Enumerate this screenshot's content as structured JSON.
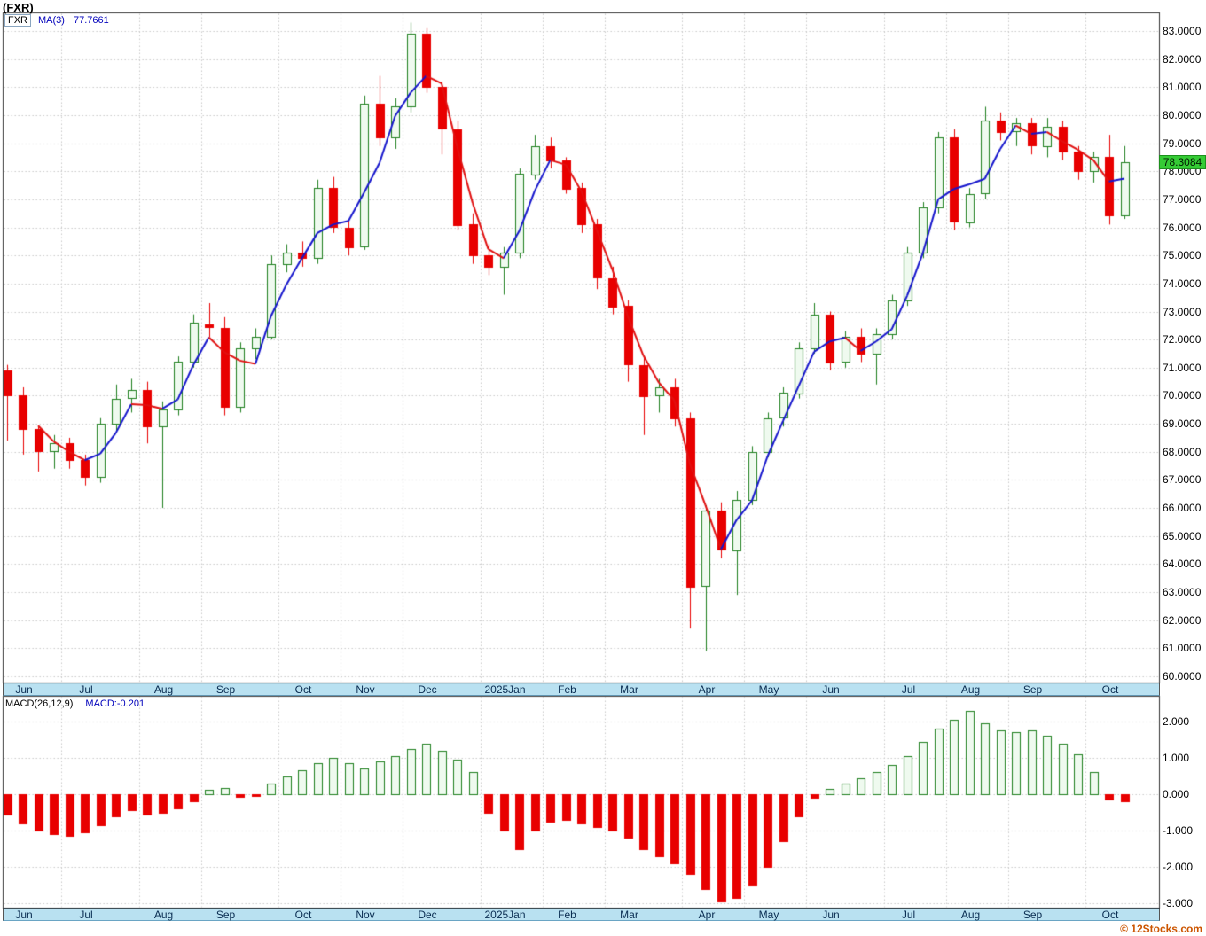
{
  "header": {
    "title": "(FXR)"
  },
  "legend": {
    "symbol": "FXR",
    "ma_label": "MA(3)",
    "ma_value": "77.7661"
  },
  "macd_panel": {
    "label": "MACD(26,12,9)",
    "value_label": "MACD:-0.201"
  },
  "price_tag": {
    "value": "78.3084"
  },
  "footer": {
    "copyright": "© 12Stocks.com"
  },
  "colors": {
    "up": "#1e7f1e",
    "up_fill": "#effaef",
    "down": "#e80000",
    "ma_up": "#1515cc",
    "ma_down": "#e01010",
    "grid": "#c9c9c9",
    "border": "#333333",
    "strip_bg": "#b9e1f1",
    "tag_bg": "#35cb35",
    "legend_blue": "#0000bb",
    "copyright": "#cc5500"
  },
  "chart_data": {
    "type": "candlestick",
    "title": "(FXR)",
    "symbol": "FXR",
    "last_price": 78.3084,
    "overlay": {
      "name": "MA(3)",
      "period": 3,
      "current": 77.7661
    },
    "price_axis": {
      "min": 60,
      "max": 83,
      "step": 1,
      "side": "right",
      "label_format": "4-decimals"
    },
    "grid": true,
    "months": [
      {
        "label": "Jun",
        "start": 0
      },
      {
        "label": "Jul",
        "start": 4
      },
      {
        "label": "Aug",
        "start": 9
      },
      {
        "label": "Sep",
        "start": 13
      },
      {
        "label": "Oct",
        "start": 18
      },
      {
        "label": "Nov",
        "start": 22
      },
      {
        "label": "Dec",
        "start": 26
      },
      {
        "label": "2025Jan",
        "start": 31
      },
      {
        "label": "Feb",
        "start": 35
      },
      {
        "label": "Mar",
        "start": 39
      },
      {
        "label": "Apr",
        "start": 44
      },
      {
        "label": "May",
        "start": 48
      },
      {
        "label": "Jun",
        "start": 52
      },
      {
        "label": "Jul",
        "start": 57
      },
      {
        "label": "Aug",
        "start": 61
      },
      {
        "label": "Sep",
        "start": 65
      },
      {
        "label": "Oct",
        "start": 70
      }
    ],
    "candles_ohlc": [
      [
        70.9,
        71.1,
        68.4,
        70.0
      ],
      [
        70.0,
        70.3,
        67.9,
        68.8
      ],
      [
        68.8,
        68.9,
        67.3,
        68.0
      ],
      [
        68.0,
        68.6,
        67.4,
        68.3
      ],
      [
        68.3,
        68.5,
        67.4,
        67.7
      ],
      [
        67.7,
        67.9,
        66.8,
        67.1
      ],
      [
        67.1,
        69.2,
        66.9,
        69.0
      ],
      [
        69.0,
        70.4,
        68.7,
        69.9
      ],
      [
        69.9,
        70.6,
        69.4,
        70.2
      ],
      [
        70.2,
        70.5,
        68.3,
        68.9
      ],
      [
        68.9,
        69.8,
        66.0,
        69.5
      ],
      [
        69.5,
        71.4,
        69.3,
        71.2
      ],
      [
        71.2,
        72.9,
        71.0,
        72.6
      ],
      [
        72.55,
        73.3,
        72.1,
        72.45
      ],
      [
        72.4,
        72.8,
        69.3,
        69.6
      ],
      [
        69.6,
        71.9,
        69.4,
        71.7
      ],
      [
        71.7,
        72.4,
        71.3,
        72.1
      ],
      [
        72.1,
        75.0,
        72.0,
        74.7
      ],
      [
        74.7,
        75.4,
        74.4,
        75.1
      ],
      [
        75.1,
        75.5,
        74.6,
        74.9
      ],
      [
        74.9,
        77.7,
        74.7,
        77.4
      ],
      [
        77.4,
        77.8,
        75.8,
        76.0
      ],
      [
        76.0,
        76.3,
        75.0,
        75.3
      ],
      [
        75.3,
        80.7,
        75.2,
        80.4
      ],
      [
        80.4,
        81.4,
        78.9,
        79.2
      ],
      [
        79.2,
        80.6,
        78.8,
        80.3
      ],
      [
        80.3,
        83.3,
        80.1,
        82.9
      ],
      [
        82.9,
        83.1,
        80.8,
        81.0
      ],
      [
        81.0,
        81.2,
        78.6,
        79.5
      ],
      [
        79.5,
        79.8,
        75.9,
        76.1
      ],
      [
        76.1,
        76.5,
        74.7,
        75.0
      ],
      [
        75.0,
        75.4,
        74.3,
        74.6
      ],
      [
        74.6,
        75.3,
        73.6,
        75.1
      ],
      [
        75.1,
        78.1,
        74.9,
        77.9
      ],
      [
        77.9,
        79.3,
        77.7,
        78.9
      ],
      [
        78.9,
        79.2,
        78.1,
        78.4
      ],
      [
        78.4,
        78.5,
        77.2,
        77.4
      ],
      [
        77.4,
        77.6,
        75.8,
        76.1
      ],
      [
        76.1,
        76.3,
        73.8,
        74.2
      ],
      [
        74.2,
        74.6,
        72.9,
        73.2
      ],
      [
        73.2,
        73.4,
        70.5,
        71.1
      ],
      [
        71.1,
        71.4,
        68.6,
        70.0
      ],
      [
        70.0,
        70.6,
        69.4,
        70.3
      ],
      [
        70.3,
        70.6,
        68.9,
        69.2
      ],
      [
        69.2,
        69.4,
        61.7,
        63.2
      ],
      [
        63.2,
        66.1,
        60.9,
        65.9
      ],
      [
        65.9,
        66.2,
        64.2,
        64.5
      ],
      [
        64.5,
        66.6,
        62.9,
        66.3
      ],
      [
        66.3,
        68.2,
        66.1,
        68.0
      ],
      [
        68.0,
        69.4,
        67.8,
        69.2
      ],
      [
        69.2,
        70.3,
        68.9,
        70.1
      ],
      [
        70.1,
        71.9,
        69.9,
        71.7
      ],
      [
        71.7,
        73.3,
        71.5,
        72.9
      ],
      [
        72.9,
        73.0,
        70.9,
        71.2
      ],
      [
        71.2,
        72.3,
        71.0,
        72.1
      ],
      [
        72.1,
        72.4,
        71.2,
        71.5
      ],
      [
        71.5,
        72.4,
        70.4,
        72.2
      ],
      [
        72.2,
        73.6,
        72.0,
        73.4
      ],
      [
        73.4,
        75.3,
        73.2,
        75.1
      ],
      [
        75.1,
        76.9,
        74.9,
        76.7
      ],
      [
        76.7,
        79.4,
        76.5,
        79.2
      ],
      [
        79.2,
        79.5,
        75.9,
        76.2
      ],
      [
        76.2,
        77.4,
        76.0,
        77.2
      ],
      [
        77.2,
        80.3,
        77.0,
        79.8
      ],
      [
        79.8,
        80.1,
        79.1,
        79.4
      ],
      [
        79.4,
        79.9,
        78.9,
        79.7
      ],
      [
        79.7,
        79.9,
        78.6,
        78.9
      ],
      [
        78.9,
        79.9,
        78.5,
        79.6
      ],
      [
        79.6,
        79.8,
        78.4,
        78.7
      ],
      [
        78.7,
        78.9,
        77.7,
        78.0
      ],
      [
        78.0,
        78.7,
        77.6,
        78.5
      ],
      [
        78.5,
        79.3,
        76.1,
        76.4
      ],
      [
        76.4,
        78.9,
        76.3,
        78.31
      ]
    ],
    "indicator": {
      "name": "MACD(26,12,9)",
      "current": -0.201,
      "axis": {
        "min": -3,
        "max": 2,
        "step": 1,
        "label_format": "3-decimals"
      },
      "histogram": [
        -0.55,
        -0.8,
        -1.0,
        -1.1,
        -1.15,
        -1.05,
        -0.85,
        -0.6,
        -0.45,
        -0.55,
        -0.5,
        -0.4,
        -0.2,
        0.12,
        0.18,
        -0.08,
        -0.06,
        0.3,
        0.5,
        0.65,
        0.85,
        1.0,
        0.85,
        0.7,
        0.9,
        1.05,
        1.25,
        1.4,
        1.2,
        0.95,
        0.6,
        -0.5,
        -1.0,
        -1.5,
        -1.0,
        -0.75,
        -0.7,
        -0.8,
        -0.9,
        -1.0,
        -1.2,
        -1.5,
        -1.7,
        -1.9,
        -2.2,
        -2.6,
        -2.95,
        -2.85,
        -2.5,
        -2.0,
        -1.3,
        -0.6,
        -0.1,
        0.15,
        0.3,
        0.45,
        0.6,
        0.8,
        1.05,
        1.45,
        1.8,
        2.05,
        2.3,
        1.95,
        1.75,
        1.7,
        1.75,
        1.6,
        1.4,
        1.1,
        0.6,
        -0.15,
        -0.201
      ]
    }
  }
}
